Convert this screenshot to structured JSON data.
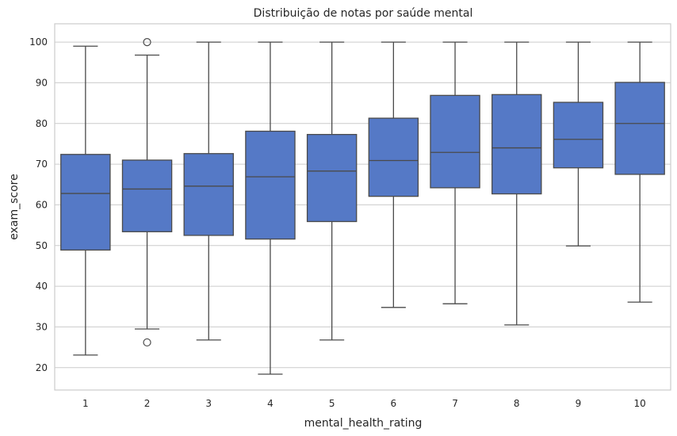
{
  "chart_data": {
    "type": "boxplot",
    "title": "Distribuição de notas por saúde mental",
    "xlabel": "mental_health_rating",
    "ylabel": "exam_score",
    "ylim": [
      14.5,
      104.5
    ],
    "yticks": [
      20,
      30,
      40,
      50,
      60,
      70,
      80,
      90,
      100
    ],
    "grid": true,
    "box_color": "#5579c6",
    "line_color": "#4a4a4a",
    "categories": [
      "1",
      "2",
      "3",
      "4",
      "5",
      "6",
      "7",
      "8",
      "9",
      "10"
    ],
    "boxes": [
      {
        "category": "1",
        "whisker_low": 23.1,
        "q1": 48.9,
        "median": 62.8,
        "q3": 72.4,
        "whisker_high": 99.0,
        "outliers": []
      },
      {
        "category": "2",
        "whisker_low": 29.5,
        "q1": 53.4,
        "median": 63.9,
        "q3": 71.0,
        "whisker_high": 96.8,
        "outliers": [
          100.0,
          26.2
        ]
      },
      {
        "category": "3",
        "whisker_low": 26.8,
        "q1": 52.5,
        "median": 64.6,
        "q3": 72.6,
        "whisker_high": 100.0,
        "outliers": []
      },
      {
        "category": "4",
        "whisker_low": 18.4,
        "q1": 51.6,
        "median": 66.9,
        "q3": 78.1,
        "whisker_high": 100.0,
        "outliers": []
      },
      {
        "category": "5",
        "whisker_low": 26.8,
        "q1": 55.9,
        "median": 68.3,
        "q3": 77.3,
        "whisker_high": 100.0,
        "outliers": []
      },
      {
        "category": "6",
        "whisker_low": 34.8,
        "q1": 62.1,
        "median": 70.9,
        "q3": 81.3,
        "whisker_high": 100.0,
        "outliers": []
      },
      {
        "category": "7",
        "whisker_low": 35.7,
        "q1": 64.2,
        "median": 72.9,
        "q3": 86.9,
        "whisker_high": 100.0,
        "outliers": []
      },
      {
        "category": "8",
        "whisker_low": 30.5,
        "q1": 62.7,
        "median": 74.0,
        "q3": 87.1,
        "whisker_high": 100.0,
        "outliers": []
      },
      {
        "category": "9",
        "whisker_low": 49.9,
        "q1": 69.1,
        "median": 76.1,
        "q3": 85.2,
        "whisker_high": 100.0,
        "outliers": []
      },
      {
        "category": "10",
        "whisker_low": 36.1,
        "q1": 67.5,
        "median": 80.0,
        "q3": 90.1,
        "whisker_high": 100.0,
        "outliers": []
      }
    ]
  }
}
